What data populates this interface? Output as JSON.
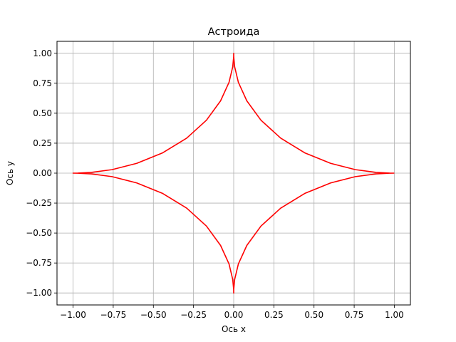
{
  "chart_data": {
    "type": "line",
    "title": "Астроида",
    "xlabel": "Ось x",
    "ylabel": "Ось y",
    "xlim": [
      -1.1,
      1.1
    ],
    "ylim": [
      -1.1,
      1.1
    ],
    "grid": true,
    "xticks": [
      -1.0,
      -0.75,
      -0.5,
      -0.25,
      0.0,
      0.25,
      0.5,
      0.75,
      1.0
    ],
    "yticks": [
      -1.0,
      -0.75,
      -0.5,
      -0.25,
      0.0,
      0.25,
      0.5,
      0.75,
      1.0
    ],
    "xtick_labels": [
      "−1.00",
      "−0.75",
      "−0.50",
      "−0.25",
      "0.00",
      "0.25",
      "0.50",
      "0.75",
      "1.00"
    ],
    "ytick_labels": [
      "−1.00",
      "−0.75",
      "−0.50",
      "−0.25",
      "0.00",
      "0.25",
      "0.50",
      "0.75",
      "1.00"
    ],
    "series": [
      {
        "color": "#ff0000",
        "x": [
          1.0,
          0.9706,
          0.8863,
          0.7579,
          0.6035,
          0.4419,
          0.2923,
          0.1696,
          0.0816,
          0.0291,
          0.0061,
          0.0002,
          0.0,
          -0.0002,
          -0.0061,
          -0.0291,
          -0.0816,
          -0.1696,
          -0.2923,
          -0.4419,
          -0.6035,
          -0.7579,
          -0.8863,
          -0.9706,
          -1.0,
          -0.9706,
          -0.8863,
          -0.7579,
          -0.6035,
          -0.4419,
          -0.2923,
          -0.1696,
          -0.0816,
          -0.0291,
          -0.0061,
          -0.0002,
          0.0,
          0.0002,
          0.0061,
          0.0291,
          0.0816,
          0.1696,
          0.2923,
          0.4419,
          0.6035,
          0.7579,
          0.8863,
          0.9706,
          1.0
        ],
        "y": [
          0.0,
          0.0002,
          0.0061,
          0.0291,
          0.0816,
          0.1696,
          0.2923,
          0.4419,
          0.6035,
          0.7579,
          0.8863,
          0.9706,
          1.0,
          0.9706,
          0.8863,
          0.7579,
          0.6035,
          0.4419,
          0.2923,
          0.1696,
          0.0816,
          0.0291,
          0.0061,
          0.0002,
          0.0,
          -0.0002,
          -0.0061,
          -0.0291,
          -0.0816,
          -0.1696,
          -0.2923,
          -0.4419,
          -0.6035,
          -0.7579,
          -0.8863,
          -0.9706,
          -1.0,
          -0.9706,
          -0.8863,
          -0.7579,
          -0.6035,
          -0.4419,
          -0.2923,
          -0.1696,
          -0.0816,
          -0.0291,
          -0.0061,
          -0.0002,
          0.0
        ]
      }
    ]
  }
}
